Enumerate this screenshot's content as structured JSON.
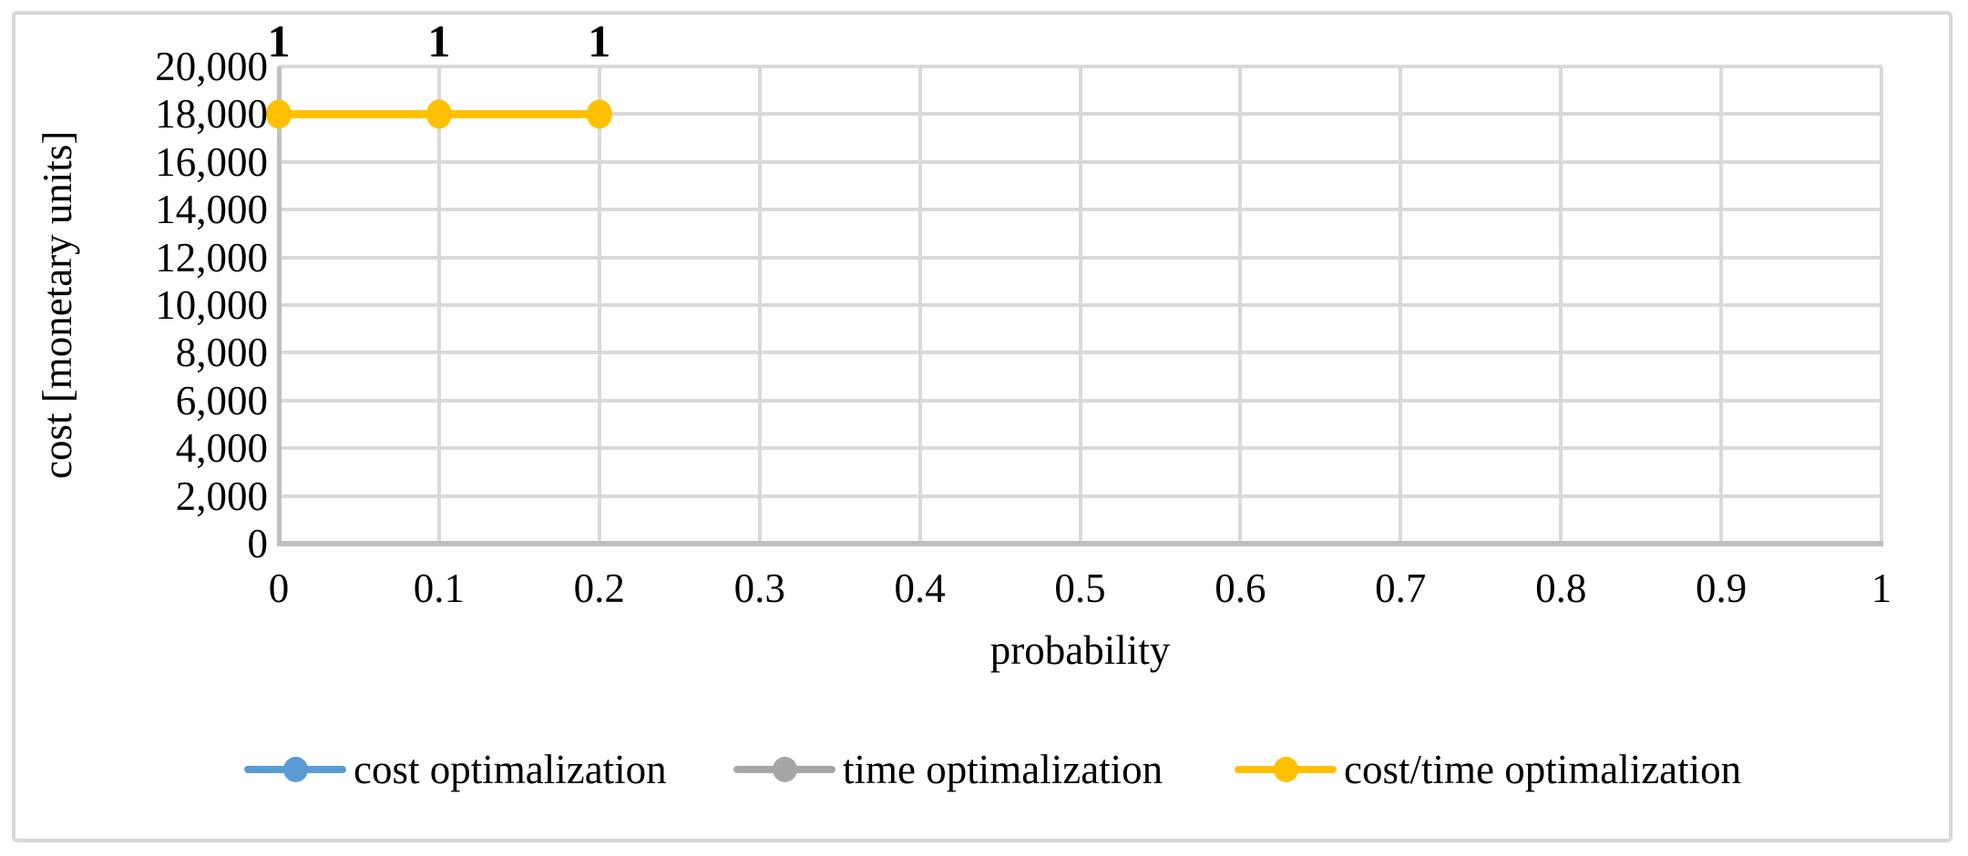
{
  "figure": {
    "background": "#ffffff",
    "frame_color": "#D8D8D8"
  },
  "chart_data": {
    "type": "line",
    "title": "",
    "xlabel": "probability",
    "ylabel": "cost [monetary units]",
    "xlim": [
      0,
      1
    ],
    "ylim": [
      0,
      20000
    ],
    "x_ticks": [
      {
        "value": 0,
        "label": "0"
      },
      {
        "value": 0.1,
        "label": "0.1"
      },
      {
        "value": 0.2,
        "label": "0.2"
      },
      {
        "value": 0.3,
        "label": "0.3"
      },
      {
        "value": 0.4,
        "label": "0.4"
      },
      {
        "value": 0.5,
        "label": "0.5"
      },
      {
        "value": 0.6,
        "label": "0.6"
      },
      {
        "value": 0.7,
        "label": "0.7"
      },
      {
        "value": 0.8,
        "label": "0.8"
      },
      {
        "value": 0.9,
        "label": "0.9"
      },
      {
        "value": 1,
        "label": "1"
      }
    ],
    "y_ticks": [
      {
        "value": 0,
        "label": "0"
      },
      {
        "value": 2000,
        "label": "2,000"
      },
      {
        "value": 4000,
        "label": "4,000"
      },
      {
        "value": 6000,
        "label": "6,000"
      },
      {
        "value": 8000,
        "label": "8,000"
      },
      {
        "value": 10000,
        "label": "10,000"
      },
      {
        "value": 12000,
        "label": "12,000"
      },
      {
        "value": 14000,
        "label": "14,000"
      },
      {
        "value": 16000,
        "label": "16,000"
      },
      {
        "value": 18000,
        "label": "18,000"
      },
      {
        "value": 20000,
        "label": "20,000"
      }
    ],
    "grid": true,
    "gridline_color": "#D9D9D9",
    "axis_line_color": "#BFBFBF",
    "legend_position": "bottom",
    "series": [
      {
        "name": "cost optimalization",
        "color": "#5B9BD5",
        "points": []
      },
      {
        "name": "time optimalization",
        "color": "#A6A6A6",
        "points": []
      },
      {
        "name": "cost/time optimalization",
        "color": "#FFC000",
        "points": [
          {
            "x": 0,
            "y": 18000,
            "label": "1"
          },
          {
            "x": 0.1,
            "y": 18000,
            "label": "1"
          },
          {
            "x": 0.2,
            "y": 18000,
            "label": "1"
          }
        ]
      }
    ]
  }
}
